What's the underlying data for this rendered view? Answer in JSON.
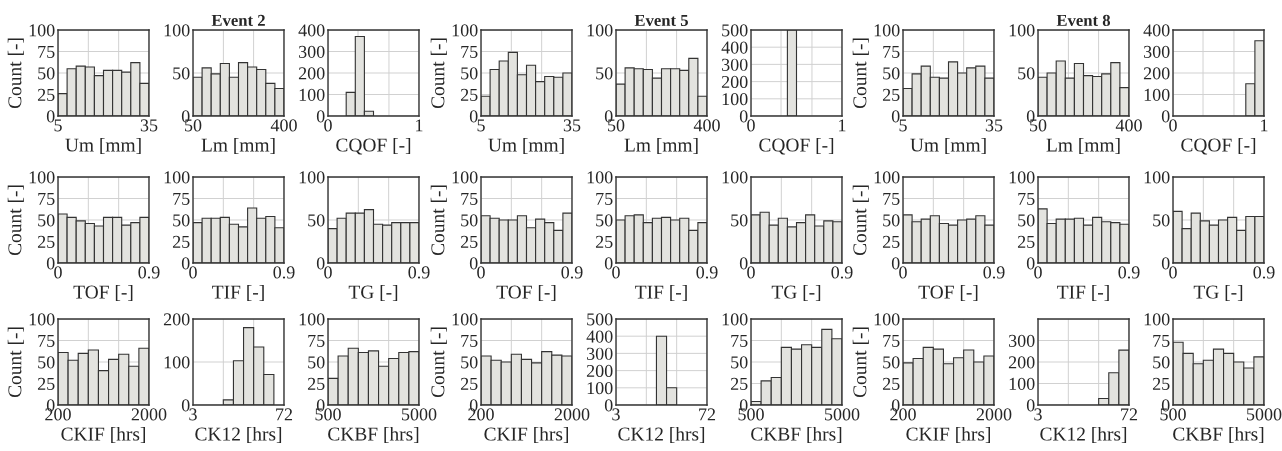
{
  "chart_data": [
    {
      "type": "histogram",
      "xlabel": "Um [mm]",
      "ylabel": "Count [-]",
      "bins": [
        5,
        8,
        11,
        14,
        17,
        20,
        23,
        26,
        29,
        32,
        35
      ],
      "values": [
        26,
        55,
        58,
        57,
        47,
        53,
        53,
        51,
        62,
        38
      ],
      "xlim": [
        5,
        35
      ],
      "xticks": [
        5,
        {
          "value": 15,
          "label": null
        },
        {
          "value": 25,
          "label": null
        },
        35
      ],
      "ylim": [
        0,
        100
      ],
      "yticks": [
        0,
        25,
        50,
        75,
        100
      ],
      "grid": true,
      "color": "#e3e3df"
    },
    {
      "type": "histogram",
      "title": "Event 2",
      "xlabel": "Lm [mm]",
      "bins": [
        50,
        85,
        120,
        155,
        190,
        225,
        260,
        295,
        330,
        365,
        400
      ],
      "values": [
        45,
        56,
        49,
        61,
        45,
        62,
        57,
        54,
        38,
        32
      ],
      "xlim": [
        50,
        400
      ],
      "xticks": [
        50,
        {
          "value": 167,
          "label": null
        },
        {
          "value": 283,
          "label": null
        },
        400
      ],
      "ylim": [
        0,
        100
      ],
      "yticks": [
        0,
        50,
        100
      ],
      "grid": true,
      "color": "#e3e3df"
    },
    {
      "type": "histogram",
      "xlabel": "CQOF [-]",
      "bins": [
        0,
        0.1,
        0.2,
        0.3,
        0.4,
        0.5,
        0.6,
        0.7,
        0.8,
        0.9,
        1
      ],
      "values": [
        0,
        0,
        110,
        370,
        22,
        0,
        0,
        0,
        0,
        0
      ],
      "xlim": [
        0,
        1
      ],
      "xticks": [
        0,
        {
          "value": 0.33,
          "label": null
        },
        {
          "value": 0.67,
          "label": null
        },
        1
      ],
      "ylim": [
        0,
        400
      ],
      "yticks": [
        0,
        100,
        200,
        300,
        400
      ],
      "grid": true,
      "color": "#e3e3df"
    },
    {
      "type": "histogram",
      "xlabel": "TOF [-]",
      "ylabel": "Count [-]",
      "bins": [
        0,
        0.09,
        0.18,
        0.27,
        0.36,
        0.45,
        0.54,
        0.63,
        0.72,
        0.81,
        0.9
      ],
      "values": [
        57,
        53,
        49,
        46,
        43,
        53,
        53,
        44,
        47,
        53
      ],
      "xlim": [
        0,
        0.9
      ],
      "xticks": [
        0,
        {
          "value": 0.3,
          "label": null
        },
        {
          "value": 0.6,
          "label": null
        },
        0.9
      ],
      "ylim": [
        0,
        100
      ],
      "yticks": [
        0,
        25,
        50,
        75,
        100
      ],
      "grid": true,
      "color": "#e3e3df"
    },
    {
      "type": "histogram",
      "xlabel": "TIF [-]",
      "bins": [
        0,
        0.09,
        0.18,
        0.27,
        0.36,
        0.45,
        0.54,
        0.63,
        0.72,
        0.81,
        0.9
      ],
      "values": [
        47,
        52,
        52,
        53,
        45,
        42,
        64,
        52,
        54,
        41
      ],
      "xlim": [
        0,
        0.9
      ],
      "xticks": [
        0,
        {
          "value": 0.3,
          "label": null
        },
        {
          "value": 0.6,
          "label": null
        },
        0.9
      ],
      "ylim": [
        0,
        100
      ],
      "yticks": [
        0,
        25,
        50,
        75,
        100
      ],
      "grid": true,
      "color": "#e3e3df"
    },
    {
      "type": "histogram",
      "xlabel": "TG [-]",
      "bins": [
        0,
        0.09,
        0.18,
        0.27,
        0.36,
        0.45,
        0.54,
        0.63,
        0.72,
        0.81,
        0.9
      ],
      "values": [
        40,
        52,
        58,
        58,
        62,
        45,
        44,
        47,
        47,
        47
      ],
      "xlim": [
        0,
        0.9
      ],
      "xticks": [
        0,
        {
          "value": 0.3,
          "label": null
        },
        {
          "value": 0.6,
          "label": null
        },
        0.9
      ],
      "ylim": [
        0,
        100
      ],
      "yticks": [
        0,
        50,
        100
      ],
      "grid": true,
      "color": "#e3e3df"
    },
    {
      "type": "histogram",
      "xlabel": "CKIF [hrs]",
      "ylabel": "Count [-]",
      "bins": [
        200,
        400,
        600,
        800,
        1000,
        1200,
        1400,
        1600,
        1800,
        2000
      ],
      "values": [
        61,
        52,
        60,
        64,
        40,
        53,
        59,
        45,
        66
      ],
      "xlim": [
        200,
        2000
      ],
      "xticks": [
        200,
        {
          "value": 800,
          "label": null
        },
        {
          "value": 1400,
          "label": null
        },
        2000
      ],
      "ylim": [
        0,
        100
      ],
      "yticks": [
        0,
        25,
        50,
        75,
        100
      ],
      "grid": true,
      "color": "#e3e3df"
    },
    {
      "type": "histogram",
      "xlabel": "CK12 [hrs]",
      "bins": [
        3,
        10.67,
        18.33,
        26,
        33.67,
        41.33,
        49,
        56.67,
        64.33,
        72
      ],
      "values": [
        0,
        0,
        0,
        12,
        103,
        180,
        135,
        71,
        0
      ],
      "xlim": [
        3,
        72
      ],
      "xticks": [
        3,
        {
          "value": 26,
          "label": null
        },
        {
          "value": 49,
          "label": null
        },
        72
      ],
      "ylim": [
        0,
        200
      ],
      "yticks": [
        0,
        100,
        200
      ],
      "grid": true,
      "color": "#e3e3df"
    },
    {
      "type": "histogram",
      "xlabel": "CKBF [hrs]",
      "bins": [
        500,
        1000,
        1500,
        2000,
        2500,
        3000,
        3500,
        4000,
        4500,
        5000
      ],
      "values": [
        31,
        57,
        66,
        61,
        63,
        45,
        54,
        61,
        62
      ],
      "xlim": [
        500,
        5000
      ],
      "xticks": [
        500,
        {
          "value": 2000,
          "label": null
        },
        {
          "value": 3500,
          "label": null
        },
        5000
      ],
      "ylim": [
        0,
        100
      ],
      "yticks": [
        0,
        25,
        50,
        75,
        100
      ],
      "grid": true,
      "color": "#e3e3df"
    },
    {
      "type": "histogram",
      "xlabel": "Um [mm]",
      "ylabel": "Count [-]",
      "bins": [
        5,
        8,
        11,
        14,
        17,
        20,
        23,
        26,
        29,
        32,
        35
      ],
      "values": [
        23,
        54,
        64,
        74,
        48,
        59,
        40,
        46,
        45,
        50
      ],
      "xlim": [
        5,
        35
      ],
      "xticks": [
        5,
        {
          "value": 15,
          "label": null
        },
        {
          "value": 25,
          "label": null
        },
        35
      ],
      "ylim": [
        0,
        100
      ],
      "yticks": [
        0,
        25,
        50,
        75,
        100
      ],
      "grid": true,
      "color": "#e3e3df"
    },
    {
      "type": "histogram",
      "title": "Event 5",
      "xlabel": "Lm [mm]",
      "bins": [
        50,
        85,
        120,
        155,
        190,
        225,
        260,
        295,
        330,
        365,
        400
      ],
      "values": [
        37,
        56,
        55,
        54,
        44,
        55,
        55,
        53,
        67,
        23
      ],
      "xlim": [
        50,
        400
      ],
      "xticks": [
        50,
        {
          "value": 167,
          "label": null
        },
        {
          "value": 283,
          "label": null
        },
        400
      ],
      "ylim": [
        0,
        100
      ],
      "yticks": [
        0,
        50,
        100
      ],
      "grid": true,
      "color": "#e3e3df"
    },
    {
      "type": "histogram",
      "xlabel": "CQOF [-]",
      "bins": [
        0,
        0.1,
        0.2,
        0.3,
        0.4,
        0.5,
        0.6,
        0.7,
        0.8,
        0.9,
        1
      ],
      "values": [
        0,
        0,
        0,
        0,
        500,
        0,
        0,
        0,
        0,
        0
      ],
      "xlim": [
        0,
        1
      ],
      "xticks": [
        0,
        {
          "value": 0.33,
          "label": null
        },
        {
          "value": 0.67,
          "label": null
        },
        1
      ],
      "ylim": [
        0,
        500
      ],
      "yticks": [
        0,
        100,
        200,
        300,
        400,
        500
      ],
      "grid": true,
      "color": "#e3e3df"
    },
    {
      "type": "histogram",
      "xlabel": "TOF [-]",
      "ylabel": "Count [-]",
      "bins": [
        0,
        0.09,
        0.18,
        0.27,
        0.36,
        0.45,
        0.54,
        0.63,
        0.72,
        0.81,
        0.9
      ],
      "values": [
        55,
        52,
        50,
        50,
        55,
        41,
        51,
        47,
        38,
        58
      ],
      "xlim": [
        0,
        0.9
      ],
      "xticks": [
        0,
        {
          "value": 0.3,
          "label": null
        },
        {
          "value": 0.6,
          "label": null
        },
        0.9
      ],
      "ylim": [
        0,
        100
      ],
      "yticks": [
        0,
        25,
        50,
        75,
        100
      ],
      "grid": true,
      "color": "#e3e3df"
    },
    {
      "type": "histogram",
      "xlabel": "TIF [-]",
      "bins": [
        0,
        0.09,
        0.18,
        0.27,
        0.36,
        0.45,
        0.54,
        0.63,
        0.72,
        0.81,
        0.9
      ],
      "values": [
        50,
        55,
        56,
        47,
        52,
        53,
        50,
        52,
        38,
        47
      ],
      "xlim": [
        0,
        0.9
      ],
      "xticks": [
        0,
        {
          "value": 0.3,
          "label": null
        },
        {
          "value": 0.6,
          "label": null
        },
        0.9
      ],
      "ylim": [
        0,
        100
      ],
      "yticks": [
        0,
        25,
        50,
        75,
        100
      ],
      "grid": true,
      "color": "#e3e3df"
    },
    {
      "type": "histogram",
      "xlabel": "TG [-]",
      "bins": [
        0,
        0.09,
        0.18,
        0.27,
        0.36,
        0.45,
        0.54,
        0.63,
        0.72,
        0.81,
        0.9
      ],
      "values": [
        56,
        59,
        44,
        52,
        42,
        47,
        56,
        43,
        49,
        48
      ],
      "xlim": [
        0,
        0.9
      ],
      "xticks": [
        0,
        {
          "value": 0.3,
          "label": null
        },
        {
          "value": 0.6,
          "label": null
        },
        0.9
      ],
      "ylim": [
        0,
        100
      ],
      "yticks": [
        0,
        50,
        100
      ],
      "grid": true,
      "color": "#e3e3df"
    },
    {
      "type": "histogram",
      "xlabel": "CKIF [hrs]",
      "ylabel": "Count [-]",
      "bins": [
        200,
        400,
        600,
        800,
        1000,
        1200,
        1400,
        1600,
        1800,
        2000
      ],
      "values": [
        57,
        52,
        50,
        59,
        53,
        49,
        62,
        58,
        57
      ],
      "xlim": [
        200,
        2000
      ],
      "xticks": [
        200,
        {
          "value": 800,
          "label": null
        },
        {
          "value": 1400,
          "label": null
        },
        2000
      ],
      "ylim": [
        0,
        100
      ],
      "yticks": [
        0,
        25,
        50,
        75,
        100
      ],
      "grid": true,
      "color": "#e3e3df"
    },
    {
      "type": "histogram",
      "xlabel": "CK12 [hrs]",
      "bins": [
        3,
        10.67,
        18.33,
        26,
        33.67,
        41.33,
        49,
        56.67,
        64.33,
        72
      ],
      "values": [
        0,
        0,
        0,
        0,
        400,
        100,
        0,
        0,
        0
      ],
      "xlim": [
        3,
        72
      ],
      "xticks": [
        3,
        {
          "value": 26,
          "label": null
        },
        {
          "value": 49,
          "label": null
        },
        72
      ],
      "ylim": [
        0,
        500
      ],
      "yticks": [
        0,
        100,
        200,
        300,
        400,
        500
      ],
      "grid": true,
      "color": "#e3e3df"
    },
    {
      "type": "histogram",
      "xlabel": "CKBF [hrs]",
      "bins": [
        500,
        1000,
        1500,
        2000,
        2500,
        3000,
        3500,
        4000,
        4500,
        5000
      ],
      "values": [
        4,
        28,
        32,
        67,
        65,
        70,
        67,
        88,
        77
      ],
      "xlim": [
        500,
        5000
      ],
      "xticks": [
        500,
        {
          "value": 2000,
          "label": null
        },
        {
          "value": 3500,
          "label": null
        },
        5000
      ],
      "ylim": [
        0,
        100
      ],
      "yticks": [
        0,
        25,
        50,
        75,
        100
      ],
      "grid": true,
      "color": "#e3e3df"
    },
    {
      "type": "histogram",
      "xlabel": "Um [mm]",
      "ylabel": "Count [-]",
      "bins": [
        5,
        8,
        11,
        14,
        17,
        20,
        23,
        26,
        29,
        32,
        35
      ],
      "values": [
        32,
        49,
        58,
        45,
        44,
        63,
        50,
        56,
        58,
        44
      ],
      "xlim": [
        5,
        35
      ],
      "xticks": [
        5,
        {
          "value": 15,
          "label": null
        },
        {
          "value": 25,
          "label": null
        },
        35
      ],
      "ylim": [
        0,
        100
      ],
      "yticks": [
        0,
        25,
        50,
        75,
        100
      ],
      "grid": true,
      "color": "#e3e3df"
    },
    {
      "type": "histogram",
      "title": "Event 8",
      "xlabel": "Lm [mm]",
      "bins": [
        50,
        85,
        120,
        155,
        190,
        225,
        260,
        295,
        330,
        365,
        400
      ],
      "values": [
        45,
        50,
        64,
        44,
        61,
        47,
        46,
        49,
        62,
        33
      ],
      "xlim": [
        50,
        400
      ],
      "xticks": [
        50,
        {
          "value": 167,
          "label": null
        },
        {
          "value": 283,
          "label": null
        },
        400
      ],
      "ylim": [
        0,
        100
      ],
      "yticks": [
        0,
        50,
        100
      ],
      "grid": true,
      "color": "#e3e3df"
    },
    {
      "type": "histogram",
      "xlabel": "CQOF [-]",
      "bins": [
        0,
        0.1,
        0.2,
        0.3,
        0.4,
        0.5,
        0.6,
        0.7,
        0.8,
        0.9,
        1
      ],
      "values": [
        0,
        0,
        0,
        0,
        0,
        0,
        0,
        0,
        150,
        350
      ],
      "xlim": [
        0,
        1
      ],
      "xticks": [
        0,
        {
          "value": 0.33,
          "label": null
        },
        {
          "value": 0.67,
          "label": null
        },
        1
      ],
      "ylim": [
        0,
        400
      ],
      "yticks": [
        0,
        100,
        200,
        300,
        400
      ],
      "grid": true,
      "color": "#e3e3df"
    },
    {
      "type": "histogram",
      "xlabel": "TOF [-]",
      "ylabel": "Count [-]",
      "bins": [
        0,
        0.09,
        0.18,
        0.27,
        0.36,
        0.45,
        0.54,
        0.63,
        0.72,
        0.81,
        0.9
      ],
      "values": [
        56,
        48,
        51,
        55,
        46,
        44,
        50,
        51,
        55,
        44
      ],
      "xlim": [
        0,
        0.9
      ],
      "xticks": [
        0,
        {
          "value": 0.3,
          "label": null
        },
        {
          "value": 0.6,
          "label": null
        },
        0.9
      ],
      "ylim": [
        0,
        100
      ],
      "yticks": [
        0,
        25,
        50,
        75,
        100
      ],
      "grid": true,
      "color": "#e3e3df"
    },
    {
      "type": "histogram",
      "xlabel": "TIF [-]",
      "bins": [
        0,
        0.09,
        0.18,
        0.27,
        0.36,
        0.45,
        0.54,
        0.63,
        0.72,
        0.81,
        0.9
      ],
      "values": [
        63,
        46,
        51,
        51,
        52,
        44,
        53,
        48,
        47,
        45
      ],
      "xlim": [
        0,
        0.9
      ],
      "xticks": [
        0,
        {
          "value": 0.3,
          "label": null
        },
        {
          "value": 0.6,
          "label": null
        },
        0.9
      ],
      "ylim": [
        0,
        100
      ],
      "yticks": [
        0,
        25,
        50,
        75,
        100
      ],
      "grid": true,
      "color": "#e3e3df"
    },
    {
      "type": "histogram",
      "xlabel": "TG [-]",
      "bins": [
        0,
        0.09,
        0.18,
        0.27,
        0.36,
        0.45,
        0.54,
        0.63,
        0.72,
        0.81,
        0.9
      ],
      "values": [
        60,
        40,
        58,
        49,
        44,
        50,
        53,
        38,
        54,
        54
      ],
      "xlim": [
        0,
        0.9
      ],
      "xticks": [
        0,
        {
          "value": 0.3,
          "label": null
        },
        {
          "value": 0.6,
          "label": null
        },
        0.9
      ],
      "ylim": [
        0,
        100
      ],
      "yticks": [
        0,
        50,
        100
      ],
      "grid": true,
      "color": "#e3e3df"
    },
    {
      "type": "histogram",
      "xlabel": "CKIF [hrs]",
      "ylabel": "Count [-]",
      "bins": [
        200,
        400,
        600,
        800,
        1000,
        1200,
        1400,
        1600,
        1800,
        2000
      ],
      "values": [
        49,
        54,
        67,
        65,
        48,
        55,
        64,
        50,
        57
      ],
      "xlim": [
        200,
        2000
      ],
      "xticks": [
        200,
        {
          "value": 800,
          "label": null
        },
        {
          "value": 1400,
          "label": null
        },
        2000
      ],
      "ylim": [
        0,
        100
      ],
      "yticks": [
        0,
        25,
        50,
        75,
        100
      ],
      "grid": true,
      "color": "#e3e3df"
    },
    {
      "type": "histogram",
      "xlabel": "CK12 [hrs]",
      "bins": [
        3,
        10.67,
        18.33,
        26,
        33.67,
        41.33,
        49,
        56.67,
        64.33,
        72
      ],
      "values": [
        0,
        0,
        0,
        0,
        0,
        0,
        30,
        150,
        255
      ],
      "xlim": [
        3,
        72
      ],
      "xticks": [
        3,
        {
          "value": 26,
          "label": null
        },
        {
          "value": 49,
          "label": null
        },
        72
      ],
      "ylim": [
        0,
        400
      ],
      "yticks": [
        0,
        100,
        200,
        300,
        {
          "value": 400,
          "label": null
        }
      ],
      "grid": true,
      "color": "#e3e3df"
    },
    {
      "type": "histogram",
      "xlabel": "CKBF [hrs]",
      "bins": [
        500,
        1000,
        1500,
        2000,
        2500,
        3000,
        3500,
        4000,
        4500,
        5000
      ],
      "values": [
        73,
        60,
        48,
        52,
        65,
        60,
        50,
        43,
        56
      ],
      "xlim": [
        500,
        5000
      ],
      "xticks": [
        500,
        {
          "value": 2000,
          "label": null
        },
        {
          "value": 3500,
          "label": null
        },
        5000
      ],
      "ylim": [
        0,
        100
      ],
      "yticks": [
        0,
        25,
        50,
        75,
        100
      ],
      "grid": true,
      "color": "#e3e3df"
    }
  ]
}
